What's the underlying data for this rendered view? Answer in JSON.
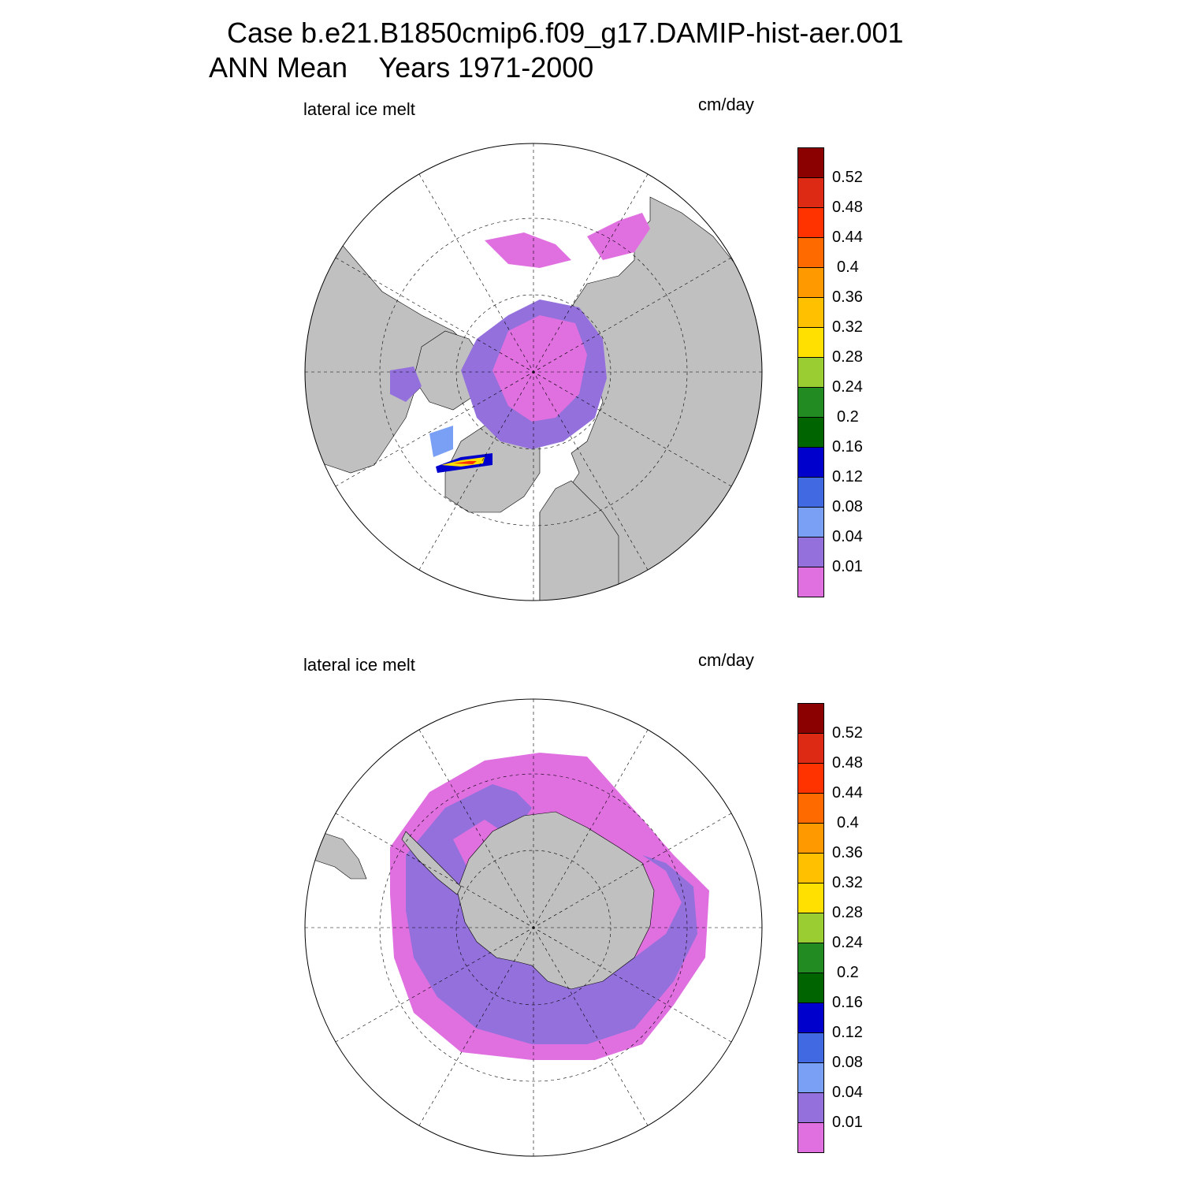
{
  "title": {
    "line1": "Case b.e21.B1850cmip6.f09_g17.DAMIP-hist-aer.001",
    "line2": "ANN Mean    Years 1971-2000"
  },
  "panels": [
    {
      "id": "north",
      "variable": "lateral ice melt",
      "units": "cm/day",
      "hemisphere": "north"
    },
    {
      "id": "south",
      "variable": "lateral ice melt",
      "units": "cm/day",
      "hemisphere": "south"
    }
  ],
  "colorbar": {
    "levels": [
      "0.01",
      "0.04",
      "0.08",
      "0.12",
      "0.16",
      "0.2",
      "0.24",
      "0.28",
      "0.32",
      "0.36",
      "0.4",
      "0.44",
      "0.48",
      "0.52"
    ],
    "colors": [
      "#e070e0",
      "#9370db",
      "#7aa0f5",
      "#4169e1",
      "#0000cd",
      "#006400",
      "#228b22",
      "#9acd32",
      "#ffe000",
      "#ffc000",
      "#ff9900",
      "#ff6a00",
      "#ff3300",
      "#dd2a14",
      "#8b0000"
    ]
  },
  "map_colors": {
    "land": "#c0c0c0",
    "ocean": "#ffffff",
    "ice_low": "#e070e0",
    "ice_mid": "#9370db"
  }
}
